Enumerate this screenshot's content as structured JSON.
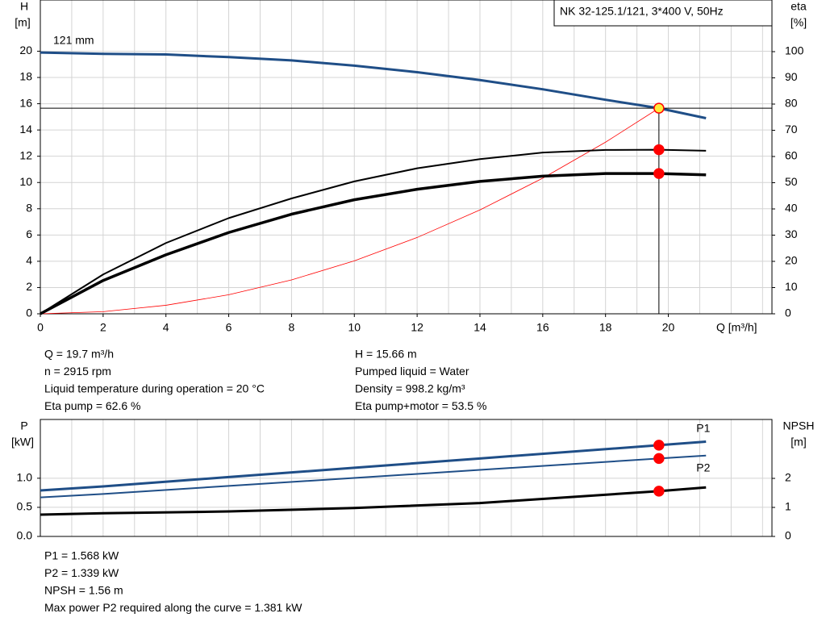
{
  "chart_data": [
    {
      "type": "line",
      "title": "NK 32-125.1/121, 3*400 V, 50Hz",
      "annotation": "121 mm",
      "ylabel": [
        "H",
        "[m]"
      ],
      "y2label": [
        "eta",
        "[%]"
      ],
      "xlabel": "Q [m³/h]",
      "xlim": [
        0,
        23.3
      ],
      "ylim": [
        0,
        23.9
      ],
      "y2lim": [
        0,
        119.7
      ],
      "xticks": [
        0,
        2,
        4,
        6,
        8,
        10,
        12,
        14,
        16,
        18,
        20
      ],
      "yticks": [
        0,
        2,
        4,
        6,
        8,
        10,
        12,
        14,
        16,
        18,
        20
      ],
      "y2ticks": [
        0,
        10,
        20,
        30,
        40,
        50,
        60,
        70,
        80,
        90,
        100
      ],
      "grid": true,
      "operating_x": 19.7,
      "series": [
        {
          "color": "#1f4e87",
          "line_width": 3,
          "marker_color": "#ffeb3b",
          "x": [
            0,
            2,
            4,
            6,
            8,
            10,
            12,
            14,
            16,
            18,
            19.7,
            21.2
          ],
          "values": [
            19.9,
            19.8,
            19.75,
            19.55,
            19.3,
            18.9,
            18.4,
            17.8,
            17.1,
            16.3,
            15.66,
            14.9
          ]
        },
        {
          "color": "#ff0000",
          "line_width": 0.8,
          "x": [
            0,
            2,
            4,
            6,
            8,
            10,
            12,
            14,
            16,
            18,
            19.7
          ],
          "values": [
            0,
            0.16,
            0.65,
            1.45,
            2.58,
            4.03,
            5.81,
            7.91,
            10.33,
            13.07,
            15.66
          ]
        },
        {
          "color": "#000000",
          "line_width": 2,
          "axis": "y2",
          "marker_color": "#ff0000",
          "x": [
            0,
            2,
            4,
            6,
            8,
            10,
            12,
            14,
            16,
            18,
            19.7,
            21.2
          ],
          "values": [
            0,
            15,
            27,
            36.5,
            44,
            50.5,
            55.5,
            59,
            61.5,
            62.5,
            62.6,
            62.2
          ]
        },
        {
          "color": "#000000",
          "line_width": 3.5,
          "axis": "y2",
          "marker_color": "#ff0000",
          "x": [
            0,
            2,
            4,
            6,
            8,
            10,
            12,
            14,
            16,
            18,
            19.7,
            21.2
          ],
          "values": [
            0,
            12.7,
            22.5,
            31,
            38,
            43.5,
            47.5,
            50.5,
            52.5,
            53.5,
            53.5,
            53
          ]
        }
      ]
    },
    {
      "type": "line",
      "ylabel": [
        "P",
        "[kW]"
      ],
      "y2label": [
        "NPSH",
        "[m]"
      ],
      "xlim": [
        0,
        23.3
      ],
      "ylim": [
        0,
        2.01
      ],
      "y2lim": [
        0,
        4.03
      ],
      "yticks": [
        {
          "value": 0,
          "label": "0.0"
        },
        {
          "value": 0.5,
          "label": "0.5"
        },
        {
          "value": 1,
          "label": "1.0"
        }
      ],
      "y2ticks": [
        0,
        1,
        2
      ],
      "grid": true,
      "operating_x": 19.7,
      "series": [
        {
          "name": "P1",
          "color": "#1f4e87",
          "line_width": 3,
          "marker_color": "#ff0000",
          "x": [
            0,
            2,
            6,
            10,
            14,
            19.7,
            21.2
          ],
          "values": [
            0.79,
            0.86,
            1.02,
            1.18,
            1.34,
            1.568,
            1.628
          ]
        },
        {
          "name": "P2",
          "color": "#1f4e87",
          "line_width": 2,
          "marker_color": "#ff0000",
          "x": [
            0,
            2,
            6,
            10,
            14,
            19.7,
            21.2
          ],
          "values": [
            0.67,
            0.73,
            0.868,
            1.005,
            1.143,
            1.339,
            1.39
          ]
        },
        {
          "color": "#000000",
          "line_width": 3,
          "axis": "y2",
          "marker_color": "#ff0000",
          "x": [
            0,
            2,
            6,
            10,
            14,
            19.7,
            21.2
          ],
          "values": [
            0.75,
            0.8,
            0.86,
            0.98,
            1.15,
            1.56,
            1.69
          ]
        }
      ]
    }
  ],
  "info_1": [
    "Q = 19.7 m³/h",
    "n = 2915 rpm",
    "Liquid temperature during operation = 20 °C",
    "Eta pump = 62.6 %"
  ],
  "info_1b": [
    "H = 15.66 m",
    "Pumped liquid = Water",
    "Density = 998.2 kg/m³",
    "Eta pump+motor = 53.5 %"
  ],
  "info_2": [
    "P1 = 1.568 kW",
    "P2 = 1.339 kW",
    "NPSH = 1.56 m",
    "Max power P2 required along the curve = 1.381 kW"
  ]
}
